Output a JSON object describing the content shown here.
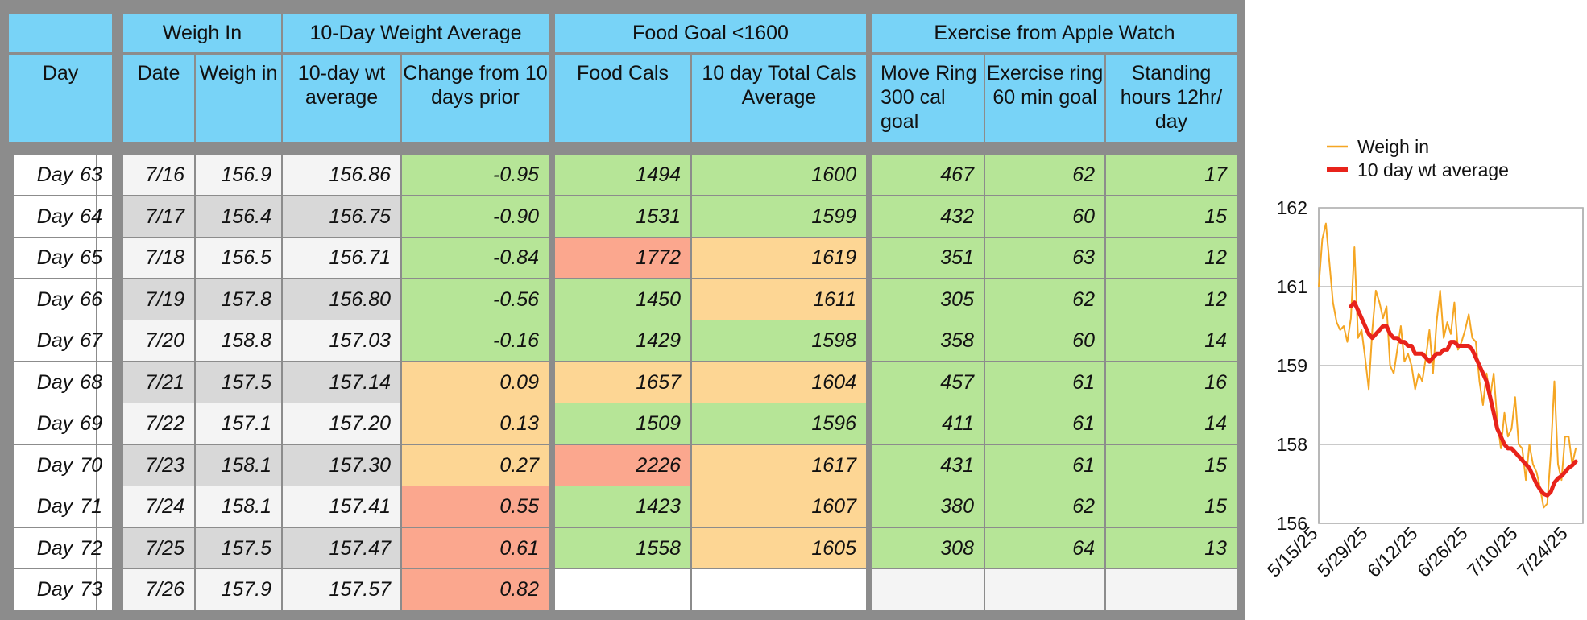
{
  "table": {
    "group_headers": {
      "weigh_in": "Weigh In",
      "ten_day_avg": "10-Day Weight Average",
      "food_goal": "Food Goal <1600",
      "exercise": "Exercise from Apple Watch"
    },
    "col_headers": {
      "day": "Day",
      "date": "Date",
      "weigh_in": "Weigh in",
      "wt_avg": "10-day wt average",
      "change": "Change from 10 days prior",
      "food_cals": "Food Cals",
      "cals_avg": "10 day Total Cals Average",
      "move_ring": "Move Ring 300 cal goal",
      "exercise_ring": "Exercise ring 60 min goal",
      "standing": "Standing hours 12hr/ day"
    },
    "rows": [
      {
        "label": "Day",
        "day": "63",
        "date": "7/16",
        "weigh": "156.9",
        "avg": "156.86",
        "change": "-0.95",
        "change_status": "g",
        "food": "1494",
        "food_status": "g",
        "cals_avg": "1600",
        "cals_avg_status": "g",
        "move": "467",
        "exercise": "62",
        "stand": "17"
      },
      {
        "label": "Day",
        "day": "64",
        "date": "7/17",
        "weigh": "156.4",
        "avg": "156.75",
        "change": "-0.90",
        "change_status": "g",
        "food": "1531",
        "food_status": "g",
        "cals_avg": "1599",
        "cals_avg_status": "g",
        "move": "432",
        "exercise": "60",
        "stand": "15"
      },
      {
        "label": "Day",
        "day": "65",
        "date": "7/18",
        "weigh": "156.5",
        "avg": "156.71",
        "change": "-0.84",
        "change_status": "g",
        "food": "1772",
        "food_status": "r",
        "cals_avg": "1619",
        "cals_avg_status": "o",
        "move": "351",
        "exercise": "63",
        "stand": "12"
      },
      {
        "label": "Day",
        "day": "66",
        "date": "7/19",
        "weigh": "157.8",
        "avg": "156.80",
        "change": "-0.56",
        "change_status": "g",
        "food": "1450",
        "food_status": "g",
        "cals_avg": "1611",
        "cals_avg_status": "o",
        "move": "305",
        "exercise": "62",
        "stand": "12"
      },
      {
        "label": "Day",
        "day": "67",
        "date": "7/20",
        "weigh": "158.8",
        "avg": "157.03",
        "change": "-0.16",
        "change_status": "g",
        "food": "1429",
        "food_status": "g",
        "cals_avg": "1598",
        "cals_avg_status": "g",
        "move": "358",
        "exercise": "60",
        "stand": "14"
      },
      {
        "label": "Day",
        "day": "68",
        "date": "7/21",
        "weigh": "157.5",
        "avg": "157.14",
        "change": "0.09",
        "change_status": "o",
        "food": "1657",
        "food_status": "o",
        "cals_avg": "1604",
        "cals_avg_status": "o",
        "move": "457",
        "exercise": "61",
        "stand": "16"
      },
      {
        "label": "Day",
        "day": "69",
        "date": "7/22",
        "weigh": "157.1",
        "avg": "157.20",
        "change": "0.13",
        "change_status": "o",
        "food": "1509",
        "food_status": "g",
        "cals_avg": "1596",
        "cals_avg_status": "g",
        "move": "411",
        "exercise": "61",
        "stand": "14"
      },
      {
        "label": "Day",
        "day": "70",
        "date": "7/23",
        "weigh": "158.1",
        "avg": "157.30",
        "change": "0.27",
        "change_status": "o",
        "food": "2226",
        "food_status": "r",
        "cals_avg": "1617",
        "cals_avg_status": "o",
        "move": "431",
        "exercise": "61",
        "stand": "15"
      },
      {
        "label": "Day",
        "day": "71",
        "date": "7/24",
        "weigh": "158.1",
        "avg": "157.41",
        "change": "0.55",
        "change_status": "r",
        "food": "1423",
        "food_status": "g",
        "cals_avg": "1607",
        "cals_avg_status": "o",
        "move": "380",
        "exercise": "62",
        "stand": "15"
      },
      {
        "label": "Day",
        "day": "72",
        "date": "7/25",
        "weigh": "157.5",
        "avg": "157.47",
        "change": "0.61",
        "change_status": "r",
        "food": "1558",
        "food_status": "g",
        "cals_avg": "1605",
        "cals_avg_status": "o",
        "move": "308",
        "exercise": "64",
        "stand": "13"
      },
      {
        "label": "Day",
        "day": "73",
        "date": "7/26",
        "weigh": "157.9",
        "avg": "157.57",
        "change": "0.82",
        "change_status": "r",
        "food": "",
        "food_status": "pw",
        "cals_avg": "",
        "cals_avg_status": "pw",
        "move": "",
        "exercise": "",
        "stand": ""
      }
    ]
  },
  "colors": {
    "header_blue": "#78d3f7",
    "good_green": "#b6e597",
    "warn_orange": "#fdd694",
    "bad_red": "#fba78e",
    "weigh_in_line": "#f5a623",
    "avg_line": "#e8231b"
  },
  "chart_data": {
    "type": "line",
    "title": "",
    "xlabel": "",
    "ylabel": "",
    "x_ticks": [
      "5/15/25",
      "5/29/25",
      "6/12/25",
      "6/26/25",
      "7/10/25",
      "7/24/25"
    ],
    "x_range": [
      "5/15/25",
      "7/28/25"
    ],
    "y_ticks": [
      "156",
      "158",
      "159",
      "161",
      "162"
    ],
    "ylim": [
      156,
      162
    ],
    "grid": "horizontal",
    "legend_position": "top",
    "series": [
      {
        "name": "Weigh in",
        "color": "#f5a623",
        "dates": [
          "5/15",
          "5/16",
          "5/17",
          "5/18",
          "5/19",
          "5/20",
          "5/21",
          "5/22",
          "5/23",
          "5/24",
          "5/25",
          "5/26",
          "5/27",
          "5/28",
          "5/29",
          "5/30",
          "5/31",
          "6/1",
          "6/2",
          "6/3",
          "6/4",
          "6/5",
          "6/6",
          "6/7",
          "6/8",
          "6/9",
          "6/10",
          "6/11",
          "6/12",
          "6/13",
          "6/14",
          "6/15",
          "6/16",
          "6/17",
          "6/18",
          "6/19",
          "6/20",
          "6/21",
          "6/22",
          "6/23",
          "6/24",
          "6/25",
          "6/26",
          "6/27",
          "6/28",
          "6/29",
          "6/30",
          "7/1",
          "7/2",
          "7/3",
          "7/4",
          "7/5",
          "7/6",
          "7/7",
          "7/8",
          "7/9",
          "7/10",
          "7/11",
          "7/12",
          "7/13",
          "7/14",
          "7/15",
          "7/16",
          "7/17",
          "7/18",
          "7/19",
          "7/20",
          "7/21",
          "7/22",
          "7/23",
          "7/24",
          "7/25",
          "7/26"
        ],
        "values": [
          161.0,
          161.6,
          161.8,
          161.3,
          160.6,
          160.1,
          159.9,
          160.0,
          159.6,
          160.2,
          161.5,
          159.7,
          159.9,
          159.2,
          158.7,
          159.9,
          160.9,
          160.6,
          160.2,
          160.5,
          159.0,
          158.9,
          159.4,
          160.0,
          159.1,
          159.3,
          159.0,
          158.7,
          158.9,
          158.8,
          159.2,
          159.9,
          158.9,
          160.1,
          160.9,
          159.7,
          160.1,
          159.8,
          160.6,
          159.4,
          159.6,
          159.9,
          160.3,
          159.7,
          159.6,
          158.8,
          158.5,
          158.9,
          158.6,
          158.9,
          158.3,
          157.9,
          158.4,
          158.1,
          158.2,
          158.6,
          158.0,
          157.9,
          157.1,
          158.0,
          157.5,
          157.3,
          156.9,
          156.4,
          156.5,
          157.8,
          158.8,
          157.5,
          157.1,
          158.1,
          158.1,
          157.5,
          157.9
        ]
      },
      {
        "name": "10 day wt average",
        "color": "#e8231b",
        "dates": [
          "5/24",
          "5/25",
          "5/26",
          "5/27",
          "5/28",
          "5/29",
          "5/30",
          "5/31",
          "6/1",
          "6/2",
          "6/3",
          "6/4",
          "6/5",
          "6/6",
          "6/7",
          "6/8",
          "6/9",
          "6/10",
          "6/11",
          "6/12",
          "6/13",
          "6/14",
          "6/15",
          "6/16",
          "6/17",
          "6/18",
          "6/19",
          "6/20",
          "6/21",
          "6/22",
          "6/23",
          "6/24",
          "6/25",
          "6/26",
          "6/27",
          "6/28",
          "6/29",
          "6/30",
          "7/1",
          "7/2",
          "7/3",
          "7/4",
          "7/5",
          "7/6",
          "7/7",
          "7/8",
          "7/9",
          "7/10",
          "7/11",
          "7/12",
          "7/13",
          "7/14",
          "7/15",
          "7/16",
          "7/17",
          "7/18",
          "7/19",
          "7/20",
          "7/21",
          "7/22",
          "7/23",
          "7/24",
          "7/25",
          "7/26"
        ],
        "values": [
          160.5,
          160.6,
          160.4,
          160.2,
          160.0,
          159.8,
          159.7,
          159.8,
          159.9,
          160.0,
          160.0,
          159.8,
          159.7,
          159.7,
          159.6,
          159.6,
          159.5,
          159.5,
          159.3,
          159.3,
          159.3,
          159.2,
          159.1,
          159.2,
          159.3,
          159.3,
          159.4,
          159.4,
          159.6,
          159.6,
          159.5,
          159.5,
          159.5,
          159.5,
          159.4,
          159.2,
          159.0,
          158.9,
          158.8,
          158.6,
          158.4,
          158.2,
          158.1,
          158.0,
          157.9,
          157.9,
          157.8,
          157.7,
          157.6,
          157.5,
          157.4,
          157.2,
          157.0,
          156.86,
          156.75,
          156.71,
          156.8,
          157.03,
          157.14,
          157.2,
          157.3,
          157.41,
          157.47,
          157.57
        ]
      }
    ]
  }
}
